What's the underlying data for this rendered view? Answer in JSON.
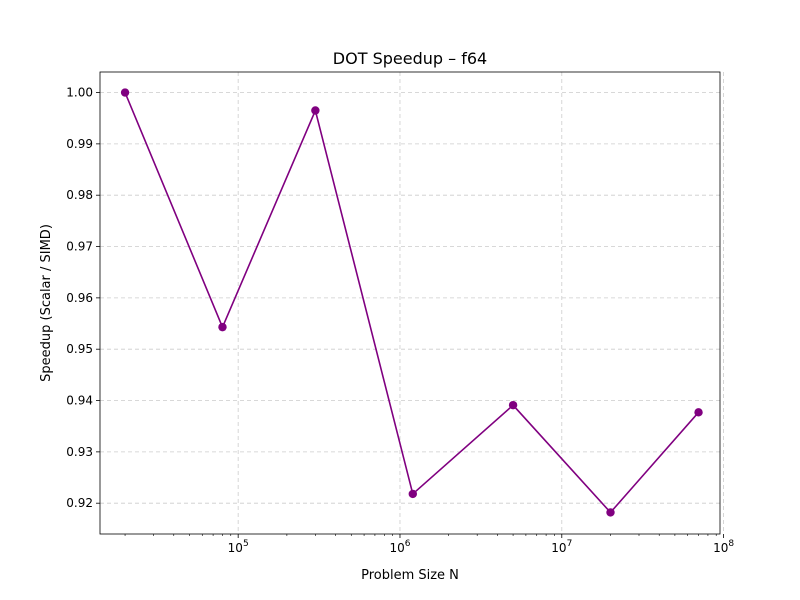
{
  "chart_data": {
    "type": "line",
    "title": "DOT Speedup – f64",
    "xlabel": "Problem Size N",
    "ylabel": "Speedup (Scalar / SIMD)",
    "x_scale": "log",
    "xlim": [
      14000,
      95000000
    ],
    "ylim": [
      0.914,
      1.004
    ],
    "x_ticks": [
      {
        "value": 100000,
        "base": "10",
        "exp": "5"
      },
      {
        "value": 1000000,
        "base": "10",
        "exp": "6"
      },
      {
        "value": 10000000,
        "base": "10",
        "exp": "7"
      },
      {
        "value": 100000000,
        "base": "10",
        "exp": "8"
      }
    ],
    "y_ticks": [
      0.92,
      0.93,
      0.94,
      0.95,
      0.96,
      0.97,
      0.98,
      0.99,
      1.0
    ],
    "y_tick_labels": [
      "0.92",
      "0.93",
      "0.94",
      "0.95",
      "0.96",
      "0.97",
      "0.98",
      "0.99",
      "1.00"
    ],
    "grid": true,
    "series": [
      {
        "color": "#800080",
        "marker": "circle",
        "x": [
          20000,
          80000,
          300000,
          1200000,
          5000000,
          20000000,
          70000000
        ],
        "y": [
          1.0,
          0.9543,
          0.9965,
          0.9218,
          0.9391,
          0.9182,
          0.9377
        ]
      }
    ]
  }
}
